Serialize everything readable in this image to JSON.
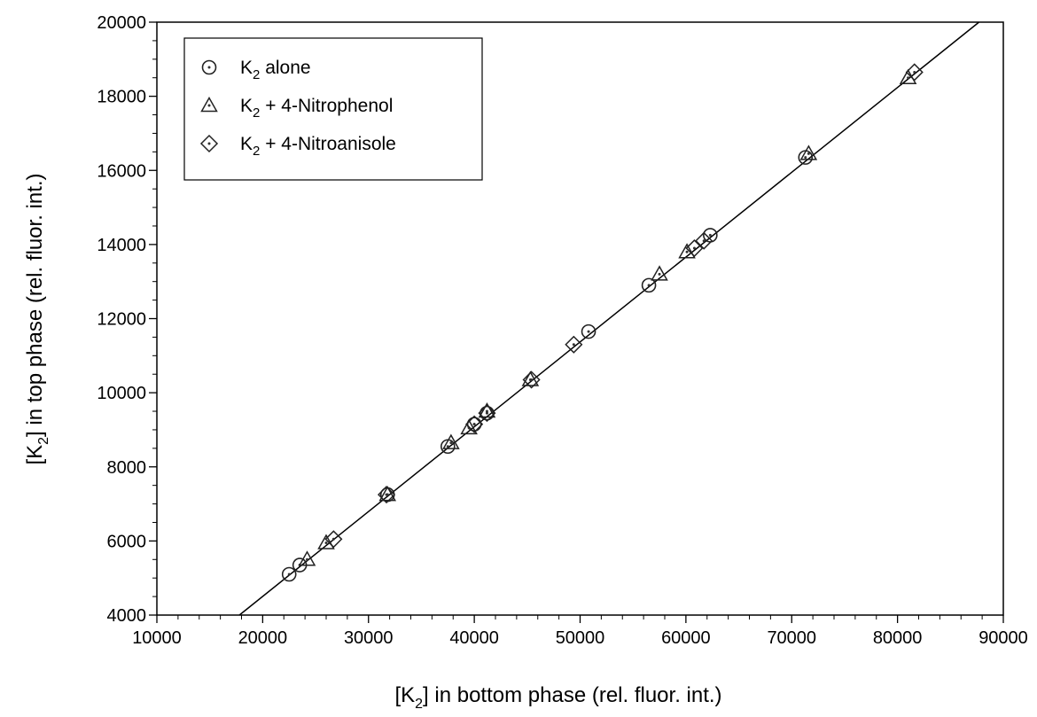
{
  "chart_data": {
    "type": "scatter",
    "xlabel": {
      "pre": "[K",
      "sub": "2",
      "post": "] in bottom phase (rel. fluor. int.)"
    },
    "ylabel": {
      "pre": "[K",
      "sub": "2",
      "post": "] in top phase (rel. fluor. int.)"
    },
    "xlim": [
      10000,
      90000
    ],
    "ylim": [
      4000,
      20000
    ],
    "xticks": [
      "10000",
      "20000",
      "30000",
      "40000",
      "50000",
      "60000",
      "70000",
      "80000",
      "90000"
    ],
    "yticks": [
      "4000",
      "6000",
      "8000",
      "10000",
      "12000",
      "14000",
      "16000",
      "18000",
      "20000"
    ],
    "grid": false,
    "legend_position": "top-left",
    "series": [
      {
        "name": {
          "pre": "K",
          "sub": "2",
          "post": " alone"
        },
        "marker": "circle",
        "points": [
          [
            22500,
            5100
          ],
          [
            23500,
            5350
          ],
          [
            31800,
            7250
          ],
          [
            37500,
            8550
          ],
          [
            40000,
            9150
          ],
          [
            41200,
            9450
          ],
          [
            50800,
            11650
          ],
          [
            56500,
            12900
          ],
          [
            62300,
            14250
          ],
          [
            71300,
            16350
          ]
        ]
      },
      {
        "name": {
          "pre": "K",
          "sub": "2",
          "post": " + 4-Nitrophenol"
        },
        "marker": "triangle",
        "points": [
          [
            24200,
            5500
          ],
          [
            26000,
            5950
          ],
          [
            31800,
            7250
          ],
          [
            37800,
            8650
          ],
          [
            39500,
            9050
          ],
          [
            41200,
            9500
          ],
          [
            45300,
            10350
          ],
          [
            57500,
            13200
          ],
          [
            60100,
            13800
          ],
          [
            71600,
            16450
          ],
          [
            81000,
            18500
          ]
        ]
      },
      {
        "name": {
          "pre": "K",
          "sub": "2",
          "post": " + 4-Nitroanisole"
        },
        "marker": "diamond",
        "points": [
          [
            26700,
            6050
          ],
          [
            31700,
            7250
          ],
          [
            40000,
            9150
          ],
          [
            41200,
            9450
          ],
          [
            45400,
            10350
          ],
          [
            49400,
            11300
          ],
          [
            60800,
            13900
          ],
          [
            61700,
            14100
          ],
          [
            81600,
            18650
          ]
        ]
      }
    ],
    "fit_line": {
      "x": [
        17800,
        87700
      ],
      "y": [
        4000,
        20000
      ]
    }
  }
}
